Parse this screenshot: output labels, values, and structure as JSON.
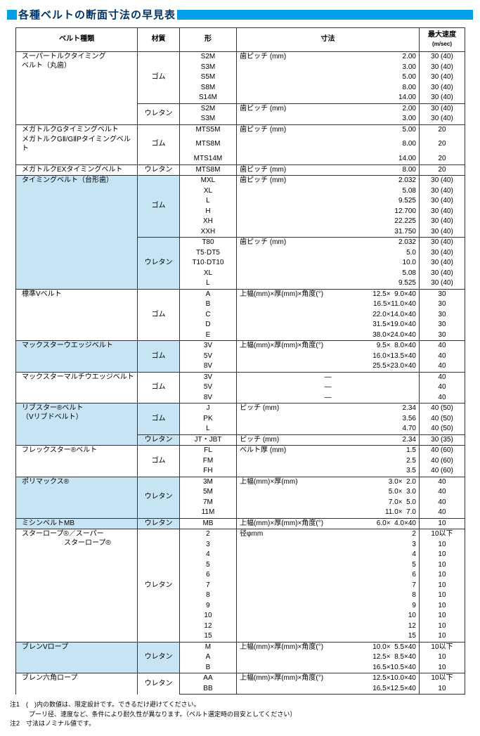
{
  "title": "各種ベルトの断面寸法の早見表",
  "headers": {
    "type": "ベルト種類",
    "material": "材質",
    "shape": "形",
    "dimension": "寸法",
    "speed": "最大速度",
    "speed_unit": "(m/sec)"
  },
  "groups": [
    {
      "shade": false,
      "blocks": [
        {
          "type_label": "スーパートルクタイミング\nベルト（丸歯）",
          "material": "ゴム",
          "dim_leader": "歯ピッチ (mm)",
          "rows": [
            {
              "shape": "S2M",
              "dim": "2.00",
              "spd": "30 (40)"
            },
            {
              "shape": "S3M",
              "dim": "3.00",
              "spd": "30 (40)"
            },
            {
              "shape": "S5M",
              "dim": "5.00",
              "spd": "30 (40)"
            },
            {
              "shape": "S8M",
              "dim": "8.00",
              "spd": "30 (40)"
            },
            {
              "shape": "S14M",
              "dim": "14.00",
              "spd": "30 (40)"
            }
          ]
        },
        {
          "material": "ウレタン",
          "dim_leader": "歯ピッチ (mm)",
          "rows": [
            {
              "shape": "S2M",
              "dim": "2.00",
              "spd": "30 (40)"
            },
            {
              "shape": "S3M",
              "dim": "3.00",
              "spd": "30 (40)"
            }
          ]
        }
      ]
    },
    {
      "shade": false,
      "blocks": [
        {
          "type_lines": [
            "メガトルクGタイミングベルト",
            "メガトルクGⅡ/GⅡPタイミングベルト",
            ""
          ],
          "material": "ゴム",
          "dim_leader": "歯ピッチ (mm)",
          "rows": [
            {
              "shape": "MTS5M",
              "dim": "5.00",
              "spd": "20"
            },
            {
              "shape": "MTS8M",
              "dim": "8.00",
              "spd": "20"
            },
            {
              "shape": "MTS14M",
              "dim": "14.00",
              "spd": "20"
            }
          ]
        },
        {
          "type_label": "メガトルクEXタイミングベルト",
          "material": "ウレタン",
          "dim_leader": "歯ピッチ (mm)",
          "rows": [
            {
              "shape": "MTS8M",
              "dim": "8.00",
              "spd": "20"
            }
          ]
        }
      ]
    },
    {
      "shade": true,
      "blocks": [
        {
          "type_label": "タイミングベルト（台形歯）",
          "material": "ゴム",
          "dim_leader": "歯ピッチ (mm)",
          "rows": [
            {
              "shape": "MXL",
              "dim": "2.032",
              "spd": "30 (40)"
            },
            {
              "shape": "XL",
              "dim": "5.08",
              "spd": "30 (40)"
            },
            {
              "shape": "L",
              "dim": "9.525",
              "spd": "30 (40)"
            },
            {
              "shape": "H",
              "dim": "12.700",
              "spd": "30 (40)"
            },
            {
              "shape": "XH",
              "dim": "22.225",
              "spd": "30 (40)"
            },
            {
              "shape": "XXH",
              "dim": "31.750",
              "spd": "30 (40)"
            }
          ]
        },
        {
          "material": "ウレタン",
          "dim_leader": "歯ピッチ (mm)",
          "rows": [
            {
              "shape": "T80",
              "dim": "2.032",
              "spd": "30 (40)"
            },
            {
              "shape": "T5·DT5",
              "dim": "5.0",
              "spd": "30 (40)"
            },
            {
              "shape": "T10·DT10",
              "dim": "10.0",
              "spd": "30 (40)"
            },
            {
              "shape": "XL",
              "dim": "5.08",
              "spd": "30 (40)"
            },
            {
              "shape": "L",
              "dim": "9.525",
              "spd": "30 (40)"
            }
          ]
        }
      ]
    },
    {
      "shade": false,
      "blocks": [
        {
          "type_label": "標準Vベルト",
          "material": "ゴム",
          "dim_leader": "上幅(mm)×厚(mm)×角度(°)",
          "rows": [
            {
              "shape": "A",
              "dim": "12.5×  9.0×40",
              "spd": "30"
            },
            {
              "shape": "B",
              "dim": "16.5×11.0×40",
              "spd": "30"
            },
            {
              "shape": "C",
              "dim": "22.0×14.0×40",
              "spd": "30"
            },
            {
              "shape": "D",
              "dim": "31.5×19.0×40",
              "spd": "30"
            },
            {
              "shape": "E",
              "dim": "38.0×24.0×40",
              "spd": "30"
            }
          ]
        }
      ]
    },
    {
      "shade": true,
      "blocks": [
        {
          "type_label": "マックスターウエッジベルト",
          "material": "ゴム",
          "dim_leader": "上幅(mm)×厚(mm)×角度(°)",
          "rows": [
            {
              "shape": "3V",
              "dim": "9.5×  8.0×40",
              "spd": "40"
            },
            {
              "shape": "5V",
              "dim": "16.0×13.5×40",
              "spd": "40"
            },
            {
              "shape": "8V",
              "dim": "25.5×23.0×40",
              "spd": "40"
            }
          ]
        }
      ]
    },
    {
      "shade": false,
      "blocks": [
        {
          "type_label": "マックスターマルチウエッジベルト",
          "material": "ゴム",
          "rows": [
            {
              "shape": "3V",
              "dim": "—",
              "spd": "40",
              "center": true
            },
            {
              "shape": "5V",
              "dim": "—",
              "spd": "40",
              "center": true
            },
            {
              "shape": "8V",
              "dim": "—",
              "spd": "40",
              "center": true
            }
          ]
        }
      ]
    },
    {
      "shade": true,
      "blocks": [
        {
          "type_label": "リブスター®ベルト\n（Vリブドベルト）",
          "material": "ゴム",
          "dim_leader": "ピッチ (mm)",
          "rows": [
            {
              "shape": "J",
              "dim": "2.34",
              "spd": "40 (50)"
            },
            {
              "shape": "PK",
              "dim": "3.56",
              "spd": "40 (50)"
            },
            {
              "shape": "L",
              "dim": "4.70",
              "spd": "40 (50)"
            }
          ]
        },
        {
          "material": "ウレタン",
          "dim_leader": "ピッチ (mm)",
          "rows": [
            {
              "shape": "JT・JBT",
              "dim": "2.34",
              "spd": "30 (35)"
            }
          ]
        }
      ]
    },
    {
      "shade": false,
      "blocks": [
        {
          "type_label": "フレックスター®ベルト",
          "material": "ゴム",
          "dim_leader": "ベルト厚 (mm)",
          "rows": [
            {
              "shape": "FL",
              "dim": "1.5",
              "spd": "40 (60)"
            },
            {
              "shape": "FM",
              "dim": "2.5",
              "spd": "40 (60)"
            },
            {
              "shape": "FH",
              "dim": "3.5",
              "spd": "40 (60)"
            }
          ]
        }
      ]
    },
    {
      "shade": true,
      "blocks": [
        {
          "type_label": "ポリマックス®",
          "material": "ウレタン",
          "dim_leader": "上幅(mm)×厚(mm)",
          "rows": [
            {
              "shape": "3M",
              "dim": "3.0×  2.0",
              "spd": "40"
            },
            {
              "shape": "5M",
              "dim": "5.0×  3.0",
              "spd": "40"
            },
            {
              "shape": "7M",
              "dim": "7.0×  5.0",
              "spd": "40"
            },
            {
              "shape": "11M",
              "dim": "11.0×  7.0",
              "spd": "40"
            }
          ]
        }
      ]
    },
    {
      "shade": true,
      "blocks": [
        {
          "type_label": "ミシンベルトMB",
          "material": "ウレタン",
          "dim_leader": "上幅(mm)×厚(mm)×角度(°)",
          "rows": [
            {
              "shape": "MB",
              "dim": "6.0×  4.0×40",
              "spd": "10"
            }
          ]
        }
      ]
    },
    {
      "shade": false,
      "blocks": [
        {
          "type_label": "スターロープ®／スーパー\n　　　　　　スターロープ®",
          "material": "ウレタン",
          "dim_leader": "径φmm",
          "rows": [
            {
              "shape": "2",
              "dim": "2",
              "spd": "10以下"
            },
            {
              "shape": "3",
              "dim": "3",
              "spd": "10"
            },
            {
              "shape": "4",
              "dim": "4",
              "spd": "10"
            },
            {
              "shape": "5",
              "dim": "5",
              "spd": "10"
            },
            {
              "shape": "6",
              "dim": "6",
              "spd": "10"
            },
            {
              "shape": "7",
              "dim": "7",
              "spd": "10"
            },
            {
              "shape": "8",
              "dim": "8",
              "spd": "10"
            },
            {
              "shape": "9",
              "dim": "9",
              "spd": "10"
            },
            {
              "shape": "10",
              "dim": "10",
              "spd": "10"
            },
            {
              "shape": "12",
              "dim": "12",
              "spd": "10"
            },
            {
              "shape": "15",
              "dim": "15",
              "spd": "10"
            }
          ]
        }
      ]
    },
    {
      "shade": true,
      "blocks": [
        {
          "type_label": "ブレンVロープ",
          "material": "ウレタン",
          "dim_leader": "上幅(mm)×厚(mm)×角度(°)",
          "rows": [
            {
              "shape": "M",
              "dim": "10.0×  5.5×40",
              "spd": "10以下"
            },
            {
              "shape": "A",
              "dim": "12.5×  8.5×40",
              "spd": "10"
            },
            {
              "shape": "B",
              "dim": "16.5×10.5×40",
              "spd": "10"
            }
          ]
        }
      ]
    },
    {
      "shade": false,
      "blocks": [
        {
          "type_label": "ブレン六角ロープ",
          "material": "ウレタン",
          "dim_leader": "上幅(mm)×厚(mm)×角度(°)",
          "rows": [
            {
              "shape": "AA",
              "dim": "12.5×10.0×40",
              "spd": "10以下"
            },
            {
              "shape": "BB",
              "dim": "16.5×12.5×40",
              "spd": "10"
            }
          ]
        }
      ]
    }
  ],
  "notes": [
    "注1　(　)内の数値は、限定設計です。できるだけ避けてください。",
    "　　　プーリ径、速度など、条件により耐久性が異なります。（ベルト選定時の目安としてください）",
    "注2　寸法はノミナル値です。"
  ]
}
